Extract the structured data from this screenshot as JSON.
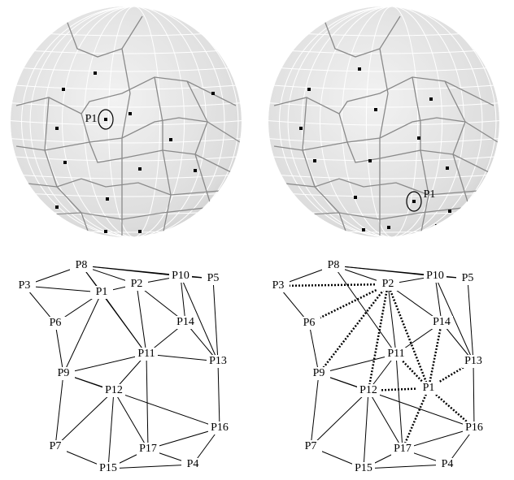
{
  "spheres": [
    {
      "label": "P1"
    },
    {
      "label": "P1"
    }
  ],
  "graphs": [
    {
      "nodes": [
        "P8",
        "P5",
        "P3",
        "P2",
        "P10",
        "P1",
        "P6",
        "P14",
        "P11",
        "P13",
        "P9",
        "P12",
        "P16",
        "P7",
        "P17",
        "P15",
        "P4"
      ]
    },
    {
      "nodes": [
        "P8",
        "P5",
        "P3",
        "P2",
        "P10",
        "P1",
        "P6",
        "P14",
        "P11",
        "P13",
        "P9",
        "P12",
        "P16",
        "P7",
        "P17",
        "P15",
        "P4"
      ]
    }
  ]
}
